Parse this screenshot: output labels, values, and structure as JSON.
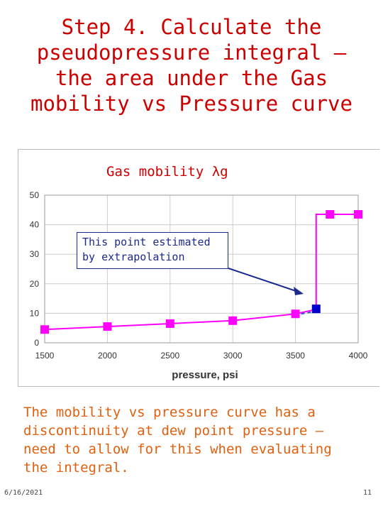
{
  "slide": {
    "title_lines": [
      "Step 4. Calculate the",
      "pseudopressure integral –",
      "the area under the Gas",
      "mobility vs  Pressure curve"
    ],
    "annotation_lines": [
      "This point estimated",
      "by extrapolation"
    ],
    "body_text": "The mobility vs pressure curve has a discontinuity at dew point pressure – need to allow for this when evaluating the integral.",
    "footer_date": "6/16/2021",
    "page_number": "11"
  },
  "chart_data": {
    "type": "line",
    "title": "Gas mobility λg",
    "xlabel": "pressure, psi",
    "ylabel": "",
    "xlim": [
      1500,
      4000
    ],
    "ylim": [
      0,
      50
    ],
    "xticks": [
      1500,
      2000,
      2500,
      3000,
      3500,
      4000
    ],
    "yticks": [
      0,
      10,
      20,
      30,
      40,
      50
    ],
    "grid": true,
    "legend": "none",
    "series": [
      {
        "color": "#ff00ff",
        "x": [
          1500,
          2000,
          2500,
          3000,
          3500,
          3775,
          4000
        ],
        "y": [
          4.5,
          5.5,
          6.5,
          7.5,
          9.8,
          43.5,
          43.5
        ],
        "step_at": 3665
      }
    ],
    "extrapolated_point": {
      "x": 3665,
      "y": 11.5,
      "color": "#0000cc"
    },
    "extrapolation_line": {
      "x": [
        3500,
        3665
      ],
      "y": [
        10.5,
        11.5
      ],
      "style": "dashed"
    }
  }
}
